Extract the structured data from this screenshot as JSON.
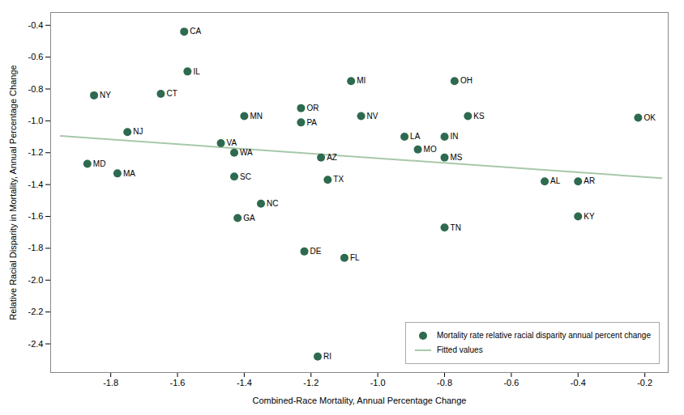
{
  "chart_data": {
    "type": "scatter",
    "xlabel": "Combined-Race Mortality, Annual Percentage Change",
    "ylabel": "Relative Racial Disparity in Mortality, Annual Percentage Change",
    "xlim": [
      -1.98,
      -0.13
    ],
    "ylim": [
      -2.58,
      -0.32
    ],
    "xticks": [
      -1.8,
      -1.6,
      -1.4,
      -1.2,
      {
        "value": -1.0,
        "label": "-1.0"
      },
      -0.8,
      -0.6,
      -0.4,
      -0.2
    ],
    "yticks": [
      -0.4,
      -0.6,
      -0.8,
      {
        "value": -1.0,
        "label": "-1.0"
      },
      -1.2,
      -1.4,
      -1.6,
      -1.8,
      {
        "value": -2.0,
        "label": "-2.0"
      },
      -2.2,
      -2.4
    ],
    "grid": false,
    "legend": "lower right",
    "series": [
      {
        "name": "Mortality rate relative racial disparity annual percent change",
        "type": "scatter",
        "color": "#2d6a4f",
        "labels": [
          "NY",
          "NJ",
          "MD",
          "MA",
          "CT",
          "CA",
          "IL",
          "VA",
          "WA",
          "SC",
          "MN",
          "GA",
          "NC",
          "OR",
          "PA",
          "DE",
          "AZ",
          "TX",
          "RI",
          "NV",
          "FL",
          "MI",
          "LA",
          "MO",
          "OH",
          "IN",
          "MS",
          "TN",
          "KS",
          "AL",
          "AR",
          "KY",
          "OK"
        ],
        "x": [
          -1.85,
          -1.75,
          -1.87,
          -1.78,
          -1.65,
          -1.58,
          -1.57,
          -1.47,
          -1.43,
          -1.43,
          -1.4,
          -1.42,
          -1.35,
          -1.23,
          -1.23,
          -1.22,
          -1.17,
          -1.15,
          -1.18,
          -1.05,
          -1.1,
          -1.08,
          -0.92,
          -0.88,
          -0.77,
          -0.8,
          -0.8,
          -0.8,
          -0.73,
          -0.5,
          -0.4,
          -0.4,
          -0.22
        ],
        "y": [
          -0.84,
          -1.07,
          -1.27,
          -1.33,
          -0.83,
          -0.44,
          -0.69,
          -1.14,
          -1.2,
          -1.35,
          -0.97,
          -1.61,
          -1.52,
          -0.92,
          -1.01,
          -1.82,
          -1.23,
          -1.37,
          -2.48,
          -0.97,
          -1.86,
          -0.75,
          -1.1,
          -1.18,
          -0.75,
          -1.1,
          -1.23,
          -1.67,
          -0.97,
          -1.38,
          -1.38,
          -1.6,
          -0.98
        ]
      },
      {
        "name": "Fitted values",
        "type": "line",
        "color": "#a8c8a8",
        "x": [
          -1.95,
          -0.15
        ],
        "y": [
          -1.095,
          -1.36
        ]
      }
    ]
  }
}
